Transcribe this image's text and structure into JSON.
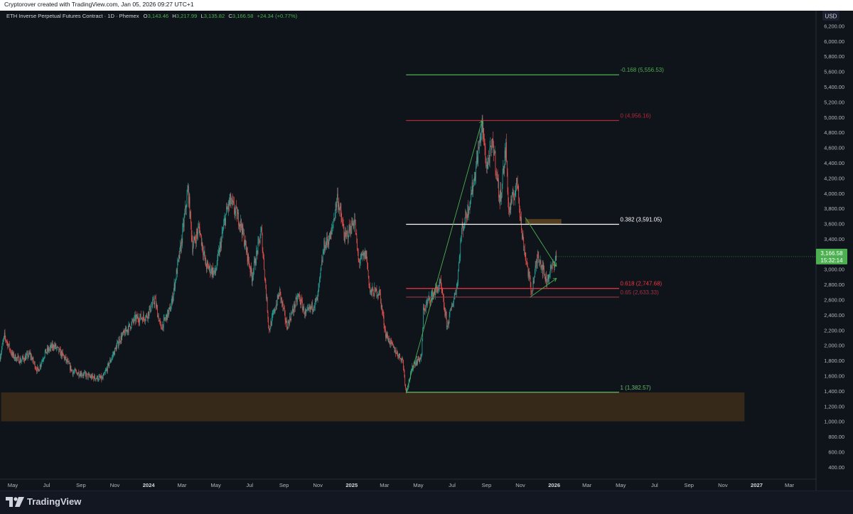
{
  "header": {
    "credit": "Cryptorover created with TradingView.com, Jan 05, 2026 09:27 UTC+1"
  },
  "legend": {
    "symbol": "ETH Inverse Perpetual Futures Contract · 1D · Phemex",
    "o_label": "O",
    "o_value": "3,143.46",
    "h_label": "H",
    "h_value": "3,217.99",
    "l_label": "L",
    "l_value": "3,135.82",
    "c_label": "C",
    "c_value": "3,166.58",
    "change": "+24.34 (+0.77%)"
  },
  "price_axis": {
    "unit": "USD",
    "current_price": "3,166.58",
    "countdown": "15:32:14"
  },
  "fib_levels": [
    {
      "label": "-0.168 (5,556.53)",
      "price": 5556.53,
      "color": "#4caf50"
    },
    {
      "label": "0 (4,956.16)",
      "price": 4956.16,
      "color": "#b2283a"
    },
    {
      "label": "0.382 (3,591.05)",
      "price": 3591.05,
      "color": "#ffffff"
    },
    {
      "label": "0.618 (2,747.68)",
      "price": 2747.68,
      "color": "#f23645"
    },
    {
      "label": "0.65 (2,633.33)",
      "price": 2633.33,
      "color": "#9e3444"
    },
    {
      "label": "1 (1,382.57)",
      "price": 1382.57,
      "color": "#66bb6a"
    }
  ],
  "zones": [
    {
      "name": "support-zone",
      "from": "2023-04-10",
      "to": "2026-12-10",
      "low": 1000,
      "high": 1380,
      "color": "#3a2a1a"
    },
    {
      "name": "resistance-zone",
      "from": "2025-11-10",
      "to": "2026-01-14",
      "low": 3590,
      "high": 3660,
      "color": "#5a4020"
    }
  ],
  "branding": {
    "name": "TradingView"
  },
  "chart_data": {
    "type": "candlestick",
    "interval": "1D",
    "x_type": "date",
    "xlim": [
      "2023-04-08",
      "2027-04-18"
    ],
    "ylim": [
      240,
      6400
    ],
    "y_ticks": [
      400,
      600,
      800,
      1000,
      1200,
      1400,
      1600,
      1800,
      2000,
      2200,
      2400,
      2600,
      2800,
      3000,
      3200,
      3400,
      3600,
      3800,
      4000,
      4200,
      4400,
      4600,
      4800,
      5000,
      5200,
      5400,
      5600,
      5800,
      6000,
      6200
    ],
    "x_ticks": [
      {
        "label": "May",
        "date": "2023-05-01"
      },
      {
        "label": "Jul",
        "date": "2023-07-01"
      },
      {
        "label": "Sep",
        "date": "2023-09-01"
      },
      {
        "label": "Nov",
        "date": "2023-11-01"
      },
      {
        "label": "2024",
        "date": "2024-01-01",
        "bold": true
      },
      {
        "label": "Mar",
        "date": "2024-03-01"
      },
      {
        "label": "May",
        "date": "2024-05-01"
      },
      {
        "label": "Jul",
        "date": "2024-07-01"
      },
      {
        "label": "Sep",
        "date": "2024-09-01"
      },
      {
        "label": "Nov",
        "date": "2024-11-01"
      },
      {
        "label": "2025",
        "date": "2025-01-01",
        "bold": true
      },
      {
        "label": "Mar",
        "date": "2025-03-01"
      },
      {
        "label": "May",
        "date": "2025-05-01"
      },
      {
        "label": "Jul",
        "date": "2025-07-01"
      },
      {
        "label": "Sep",
        "date": "2025-09-01"
      },
      {
        "label": "Nov",
        "date": "2025-11-01"
      },
      {
        "label": "2026",
        "date": "2026-01-01",
        "bold": true
      },
      {
        "label": "Mar",
        "date": "2026-03-01"
      },
      {
        "label": "May",
        "date": "2026-05-01"
      },
      {
        "label": "Jul",
        "date": "2026-07-01"
      },
      {
        "label": "Sep",
        "date": "2026-09-01"
      },
      {
        "label": "Nov",
        "date": "2026-11-01"
      },
      {
        "label": "2027",
        "date": "2027-01-01",
        "bold": true
      },
      {
        "label": "Mar",
        "date": "2027-03-01"
      }
    ],
    "price_path": [
      [
        "2023-04-08",
        1850
      ],
      [
        "2023-04-16",
        2120
      ],
      [
        "2023-05-01",
        1860
      ],
      [
        "2023-05-15",
        1800
      ],
      [
        "2023-06-01",
        1880
      ],
      [
        "2023-06-15",
        1660
      ],
      [
        "2023-06-28",
        1900
      ],
      [
        "2023-07-14",
        2000
      ],
      [
        "2023-08-01",
        1850
      ],
      [
        "2023-08-17",
        1650
      ],
      [
        "2023-09-01",
        1630
      ],
      [
        "2023-09-20",
        1580
      ],
      [
        "2023-10-10",
        1560
      ],
      [
        "2023-10-24",
        1800
      ],
      [
        "2023-11-10",
        2080
      ],
      [
        "2023-12-08",
        2350
      ],
      [
        "2023-12-28",
        2380
      ],
      [
        "2024-01-12",
        2600
      ],
      [
        "2024-01-23",
        2220
      ],
      [
        "2024-02-10",
        2500
      ],
      [
        "2024-02-28",
        3300
      ],
      [
        "2024-03-12",
        4050
      ],
      [
        "2024-03-20",
        3300
      ],
      [
        "2024-04-01",
        3550
      ],
      [
        "2024-04-13",
        3050
      ],
      [
        "2024-04-30",
        2950
      ],
      [
        "2024-05-20",
        3750
      ],
      [
        "2024-05-27",
        3900
      ],
      [
        "2024-06-15",
        3600
      ],
      [
        "2024-07-05",
        2900
      ],
      [
        "2024-07-22",
        3500
      ],
      [
        "2024-08-05",
        2200
      ],
      [
        "2024-08-24",
        2700
      ],
      [
        "2024-09-06",
        2250
      ],
      [
        "2024-09-27",
        2650
      ],
      [
        "2024-10-10",
        2400
      ],
      [
        "2024-10-31",
        2600
      ],
      [
        "2024-11-12",
        3300
      ],
      [
        "2024-11-25",
        3450
      ],
      [
        "2024-12-06",
        3950
      ],
      [
        "2024-12-20",
        3400
      ],
      [
        "2025-01-06",
        3650
      ],
      [
        "2025-01-13",
        3100
      ],
      [
        "2025-01-27",
        3200
      ],
      [
        "2025-02-03",
        2700
      ],
      [
        "2025-02-20",
        2700
      ],
      [
        "2025-03-03",
        2150
      ],
      [
        "2025-03-18",
        1950
      ],
      [
        "2025-04-03",
        1800
      ],
      [
        "2025-04-09",
        1385
      ],
      [
        "2025-04-22",
        1750
      ],
      [
        "2025-05-07",
        1850
      ],
      [
        "2025-05-10",
        2450
      ],
      [
        "2025-05-20",
        2600
      ],
      [
        "2025-06-10",
        2800
      ],
      [
        "2025-06-22",
        2250
      ],
      [
        "2025-07-10",
        2800
      ],
      [
        "2025-07-18",
        3500
      ],
      [
        "2025-07-30",
        3800
      ],
      [
        "2025-08-10",
        4200
      ],
      [
        "2025-08-24",
        4900
      ],
      [
        "2025-09-01",
        4350
      ],
      [
        "2025-09-13",
        4650
      ],
      [
        "2025-09-25",
        3900
      ],
      [
        "2025-10-06",
        4600
      ],
      [
        "2025-10-11",
        3750
      ],
      [
        "2025-10-27",
        4150
      ],
      [
        "2025-11-04",
        3450
      ],
      [
        "2025-11-21",
        2700
      ],
      [
        "2025-12-03",
        3200
      ],
      [
        "2025-12-18",
        2850
      ],
      [
        "2026-01-05",
        3166.58
      ]
    ],
    "trendlines": [
      {
        "name": "triangle-upper-line",
        "from": [
          "2025-11-10",
          3680
        ],
        "to": [
          "2026-01-05",
          3040
        ],
        "color": "#4caf50"
      },
      {
        "name": "triangle-lower-line",
        "from": [
          "2025-11-18",
          2630
        ],
        "to": [
          "2026-01-05",
          2880
        ],
        "color": "#4caf50"
      },
      {
        "name": "fib-anchor-line",
        "from": [
          "2025-04-09",
          1382.57
        ],
        "to": [
          "2025-08-24",
          4956.16
        ],
        "color": "#4caf50"
      }
    ],
    "fib_range": {
      "from": "2025-04-09",
      "to": "2026-04-28",
      "label_date": "2026-04-30"
    },
    "colors": {
      "up": "#26a69a",
      "down": "#ef5350",
      "background": "#0f131a",
      "last_price": "#4caf50"
    }
  }
}
